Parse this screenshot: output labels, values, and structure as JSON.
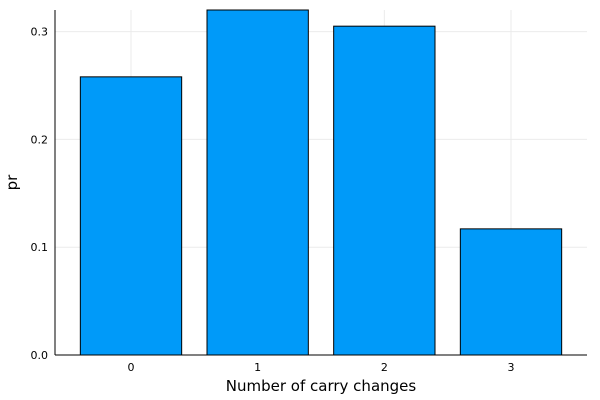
{
  "chart_data": {
    "type": "bar",
    "title": "",
    "xlabel": "Number of carry changes",
    "ylabel": "pr",
    "categories": [
      "0",
      "1",
      "2",
      "3"
    ],
    "values": [
      0.258,
      0.32,
      0.305,
      0.117
    ],
    "ylim": [
      0.0,
      0.32
    ],
    "yticks": [
      0.0,
      0.1,
      0.2,
      0.3
    ],
    "ytick_labels": [
      "0.0",
      "0.1",
      "0.2",
      "0.3"
    ],
    "grid": true,
    "legend": "none",
    "colors": {
      "bar_fill": "#009af9",
      "bar_edge": "#000000",
      "grid": "#ebebeb",
      "axis": "#000000"
    }
  }
}
